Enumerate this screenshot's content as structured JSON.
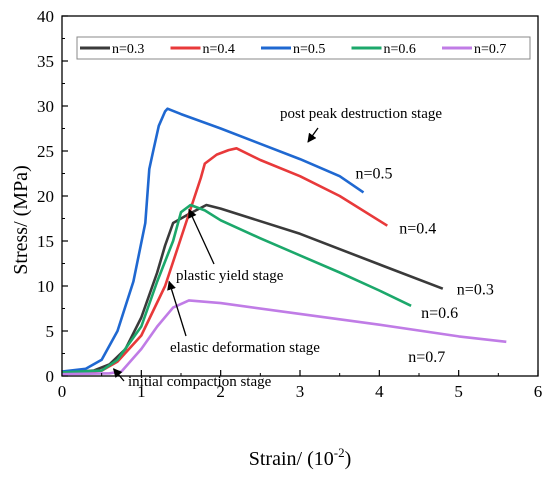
{
  "chart_data": {
    "type": "line",
    "xlabel": "Strain/ (10",
    "xlabel_sup": "-2",
    "xlabel_tail": ")",
    "ylabel": "Stress/ (MPa)",
    "xlim": [
      0,
      6
    ],
    "ylim": [
      0,
      40
    ],
    "xticks": [
      0,
      1,
      2,
      3,
      4,
      5,
      6
    ],
    "yticks": [
      0,
      5,
      10,
      15,
      20,
      25,
      30,
      35,
      40
    ],
    "grid": false,
    "legend_position": "top",
    "series": [
      {
        "name": "n=0.3",
        "color": "#3a3a3a",
        "end_label": "n=0.3",
        "points": [
          [
            0,
            0.3
          ],
          [
            0.4,
            0.6
          ],
          [
            0.6,
            1.3
          ],
          [
            0.8,
            3.0
          ],
          [
            1.0,
            6.5
          ],
          [
            1.2,
            11.5
          ],
          [
            1.3,
            14.5
          ],
          [
            1.4,
            17.0
          ],
          [
            1.6,
            18.0
          ],
          [
            1.82,
            19.0
          ],
          [
            2.0,
            18.6
          ],
          [
            3.0,
            15.8
          ],
          [
            4.0,
            12.4
          ],
          [
            4.8,
            9.7
          ]
        ]
      },
      {
        "name": "n=0.4",
        "color": "#e8393a",
        "end_label": "n=0.4",
        "points": [
          [
            0,
            0.2
          ],
          [
            0.5,
            0.6
          ],
          [
            0.7,
            1.6
          ],
          [
            1.0,
            4.5
          ],
          [
            1.3,
            10.0
          ],
          [
            1.6,
            18.0
          ],
          [
            1.75,
            22.0
          ],
          [
            1.8,
            23.6
          ],
          [
            1.95,
            24.6
          ],
          [
            2.1,
            25.1
          ],
          [
            2.2,
            25.3
          ],
          [
            2.5,
            24.0
          ],
          [
            3.0,
            22.2
          ],
          [
            3.5,
            20.0
          ],
          [
            4.1,
            16.7
          ]
        ]
      },
      {
        "name": "n=0.5",
        "color": "#1f68d1",
        "end_label": "n=0.5",
        "points": [
          [
            0,
            0.5
          ],
          [
            0.3,
            0.8
          ],
          [
            0.5,
            1.8
          ],
          [
            0.7,
            5.0
          ],
          [
            0.9,
            10.5
          ],
          [
            1.05,
            17.0
          ],
          [
            1.1,
            23.0
          ],
          [
            1.15,
            25.0
          ],
          [
            1.22,
            27.8
          ],
          [
            1.3,
            29.4
          ],
          [
            1.33,
            29.7
          ],
          [
            1.5,
            29.1
          ],
          [
            2.0,
            27.5
          ],
          [
            2.5,
            25.8
          ],
          [
            3.0,
            24.1
          ],
          [
            3.5,
            22.2
          ],
          [
            3.8,
            20.4
          ]
        ]
      },
      {
        "name": "n=0.6",
        "color": "#1ca86b",
        "end_label": "n=0.6",
        "points": [
          [
            0,
            0.4
          ],
          [
            0.5,
            0.6
          ],
          [
            0.7,
            1.8
          ],
          [
            1.0,
            5.5
          ],
          [
            1.2,
            10.5
          ],
          [
            1.4,
            15.0
          ],
          [
            1.5,
            18.2
          ],
          [
            1.62,
            19.0
          ],
          [
            1.8,
            18.4
          ],
          [
            2.0,
            17.3
          ],
          [
            2.5,
            15.3
          ],
          [
            3.0,
            13.4
          ],
          [
            3.5,
            11.5
          ],
          [
            4.0,
            9.5
          ],
          [
            4.4,
            7.8
          ]
        ]
      },
      {
        "name": "n=0.7",
        "color": "#c07ce6",
        "end_label": "n=0.7",
        "points": [
          [
            0,
            0.2
          ],
          [
            0.6,
            0.3
          ],
          [
            0.75,
            0.5
          ],
          [
            0.85,
            1.5
          ],
          [
            1.0,
            3.0
          ],
          [
            1.2,
            5.5
          ],
          [
            1.4,
            7.6
          ],
          [
            1.6,
            8.4
          ],
          [
            2.0,
            8.1
          ],
          [
            3.0,
            6.9
          ],
          [
            4.0,
            5.7
          ],
          [
            5.0,
            4.4
          ],
          [
            5.6,
            3.8
          ]
        ]
      }
    ],
    "annotations": [
      {
        "text": "post peak destruction stage",
        "arrow_to": [
          3.1,
          26.0
        ]
      },
      {
        "text": "plastic yield stage",
        "arrow_to": [
          1.6,
          18.5
        ]
      },
      {
        "text": "elastic deformation stage",
        "arrow_to": [
          1.35,
          10.5
        ]
      },
      {
        "text": "initial compaction stage",
        "arrow_to": [
          0.65,
          0.8
        ]
      }
    ]
  }
}
